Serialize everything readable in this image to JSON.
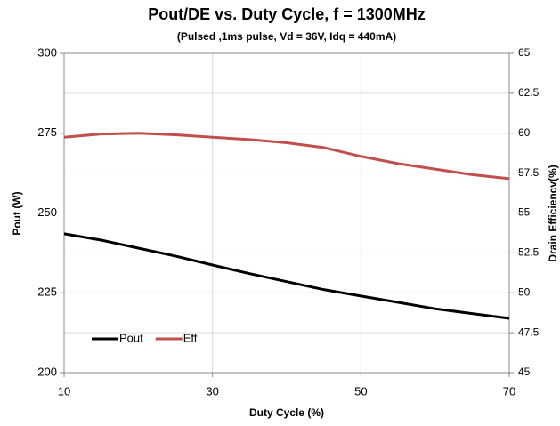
{
  "chart_data": {
    "type": "line",
    "title": "Pout/DE vs. Duty Cycle, f = 1300MHz",
    "subtitle": "(Pulsed ,1ms pulse, Vd = 36V, Idq = 440mA)",
    "x_label": "Duty Cycle (%)",
    "y_label": "Pout (W)",
    "y2_label": "Drain Efficiencv(%)",
    "x": [
      10,
      15,
      20,
      25,
      30,
      35,
      40,
      45,
      50,
      55,
      60,
      65,
      70
    ],
    "series": [
      {
        "name": "Pout",
        "color": "#000000",
        "values": [
          243.5,
          241.5,
          239,
          236.5,
          233.7,
          231,
          228.5,
          226,
          224,
          222,
          220,
          218.5,
          217
        ]
      },
      {
        "name": "Eff",
        "color": "#c0504d",
        "axis": "y2",
        "values": [
          59.75,
          59.95,
          60.0,
          59.9,
          59.75,
          59.6,
          59.4,
          59.1,
          58.55,
          58.1,
          57.75,
          57.4,
          57.15
        ]
      }
    ],
    "xlim": [
      10,
      70
    ],
    "xticks": [
      10,
      30,
      50,
      70
    ],
    "ylim": [
      200,
      300
    ],
    "yticks": [
      200,
      225,
      250,
      275,
      300
    ],
    "y2lim": [
      45,
      65
    ],
    "y2ticks": [
      45,
      47.5,
      50,
      52.5,
      55,
      57.5,
      60,
      62.5,
      65
    ],
    "grid": true,
    "legend": "lower left"
  }
}
